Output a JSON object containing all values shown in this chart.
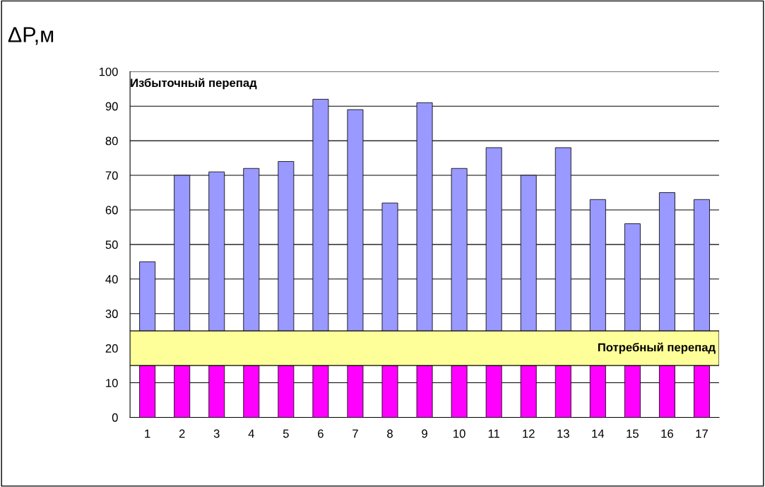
{
  "chart_data": {
    "type": "bar",
    "stacked": true,
    "ylabel": "ΔP,м",
    "categories": [
      "1",
      "2",
      "3",
      "4",
      "5",
      "6",
      "7",
      "8",
      "9",
      "10",
      "11",
      "12",
      "13",
      "14",
      "15",
      "16",
      "17"
    ],
    "series": [
      {
        "color": "#ff00ff",
        "values": [
          15,
          15,
          15,
          15,
          15,
          15,
          15,
          15,
          15,
          15,
          15,
          15,
          15,
          15,
          15,
          15,
          15
        ]
      },
      {
        "color": "#9999ff",
        "values": [
          30,
          55,
          56,
          57,
          59,
          77,
          74,
          47,
          76,
          57,
          63,
          55,
          63,
          48,
          41,
          50,
          48
        ]
      }
    ],
    "ylim": [
      0,
      100
    ],
    "yticks": [
      0,
      10,
      20,
      30,
      40,
      50,
      60,
      70,
      80,
      90,
      100
    ],
    "grid": "y",
    "bands": [
      {
        "axis": "y",
        "from": 15,
        "to": 25,
        "label": "Потребный перепад",
        "color": "#ffff99"
      }
    ],
    "annotations": [
      "Избыточный перепад"
    ]
  }
}
